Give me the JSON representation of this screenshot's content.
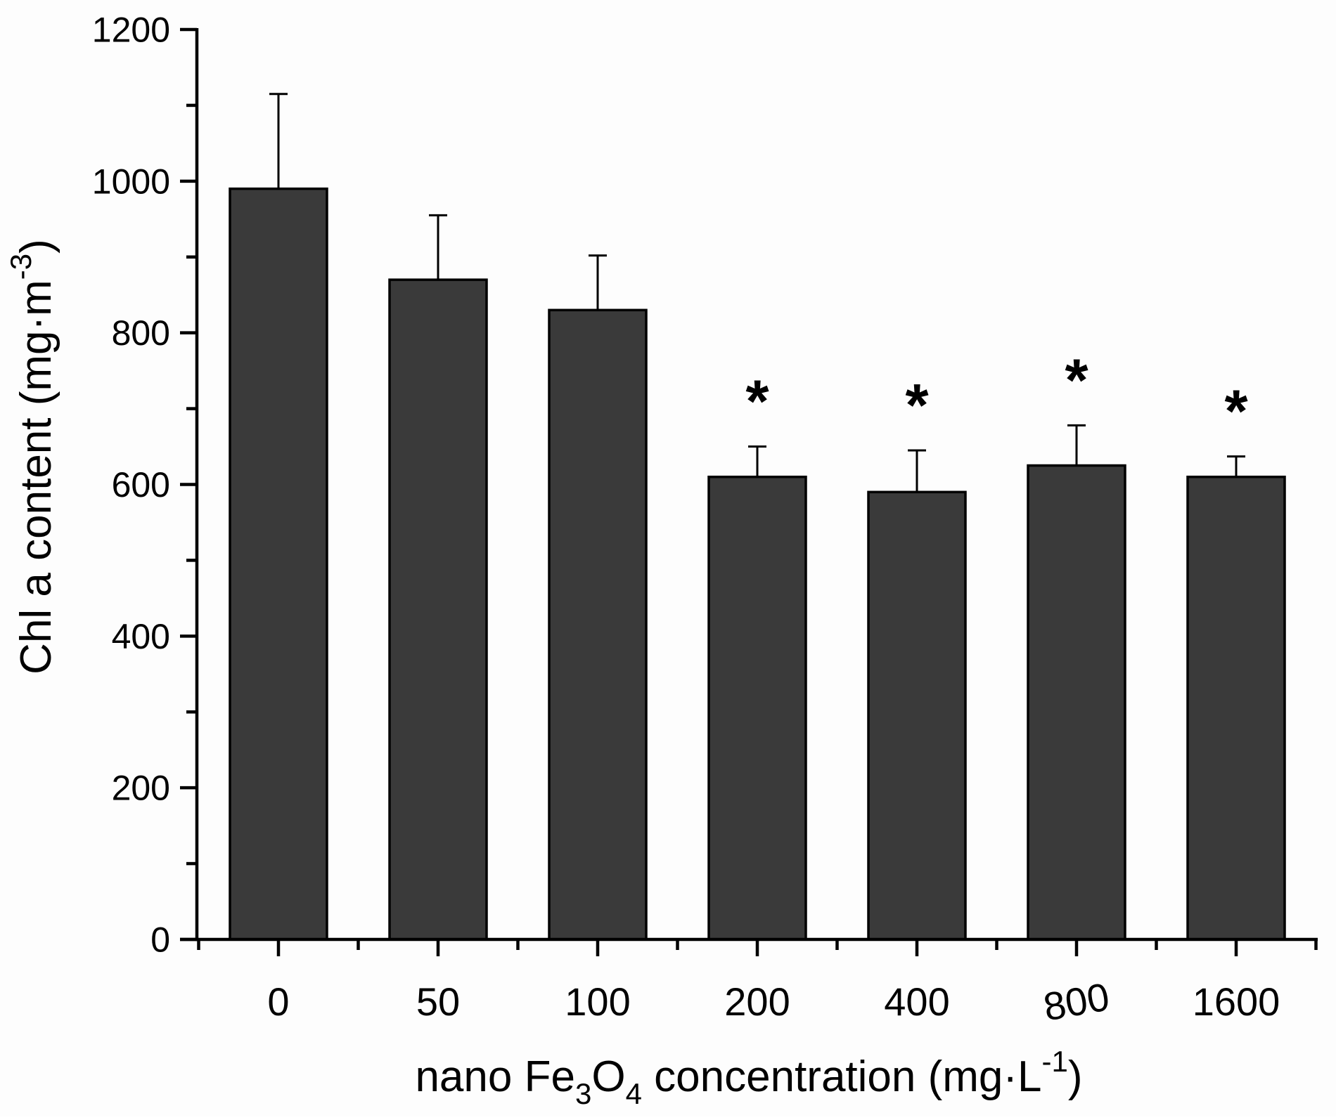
{
  "figure": {
    "background": "#fdfdfd"
  },
  "chart_data": {
    "type": "bar",
    "categories": [
      "0",
      "50",
      "100",
      "200",
      "400",
      "800",
      "1600"
    ],
    "values": [
      990,
      870,
      830,
      610,
      590,
      625,
      610
    ],
    "error_up": [
      125,
      85,
      72,
      40,
      55,
      53,
      27
    ],
    "significant": [
      false,
      false,
      false,
      true,
      true,
      true,
      true
    ],
    "significance_marker": "*",
    "title": "",
    "xlabel": "nano Fe3O4 concentration (mg·L-1)",
    "xlabel_parts": {
      "p1": "nano Fe",
      "sub1": "3",
      "p2": "O",
      "sub2": "4",
      "p3": " concentration (mg·L",
      "sup": "-1",
      "p4": ")"
    },
    "ylabel": "Chl a content (mg·m-3)",
    "ylabel_parts": {
      "p1": "Chl a content (mg·m",
      "sup": "-3",
      "p2": ")"
    },
    "ylim": [
      0,
      1200
    ],
    "y_major_ticks": [
      0,
      200,
      400,
      600,
      800,
      1000,
      1200
    ],
    "y_minor_step": 100,
    "grid": false,
    "legend": null,
    "bar_color": "#3a3a3a",
    "bar_border_color": "#000000",
    "axis_color": "#000000",
    "marker_color": "#000000"
  }
}
